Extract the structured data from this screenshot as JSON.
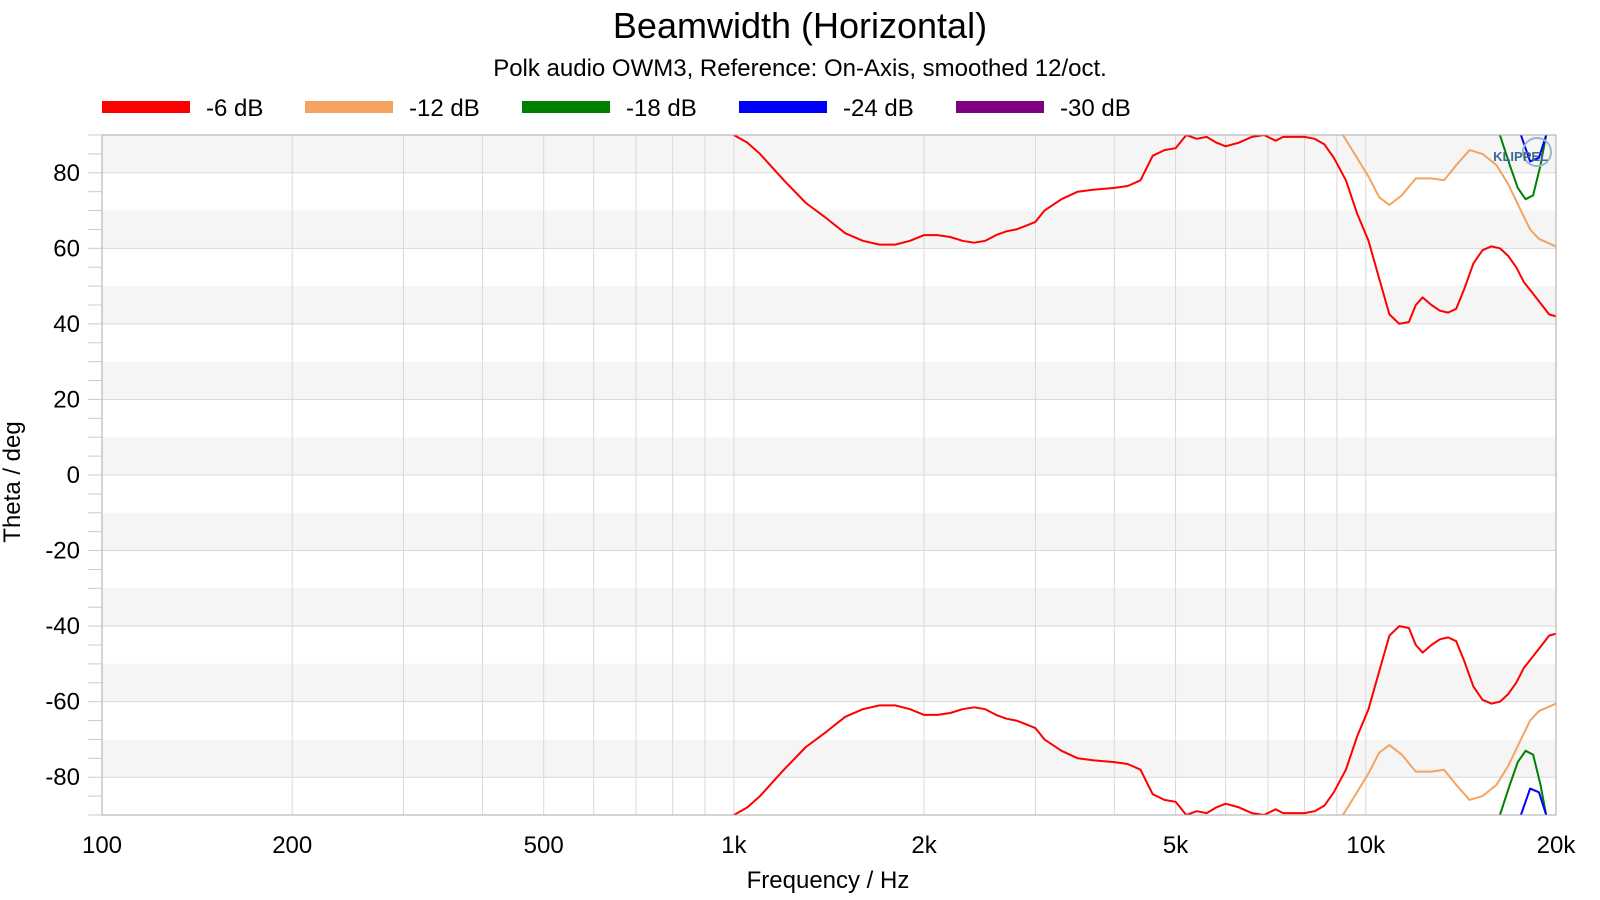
{
  "chart_data": {
    "type": "line",
    "title": "Beamwidth (Horizontal)",
    "subtitle": "Polk audio OWM3, Reference: On-Axis, smoothed 12/oct.",
    "xlabel": "Frequency / Hz",
    "ylabel": "Theta / deg",
    "xscale": "log",
    "xlim": [
      100,
      20000
    ],
    "ylim": [
      -90,
      90
    ],
    "xticks": [
      {
        "value": 100,
        "label": "100"
      },
      {
        "value": 200,
        "label": "200"
      },
      {
        "value": 500,
        "label": "500"
      },
      {
        "value": 1000,
        "label": "1k"
      },
      {
        "value": 2000,
        "label": "2k"
      },
      {
        "value": 5000,
        "label": "5k"
      },
      {
        "value": 10000,
        "label": "10k"
      },
      {
        "value": 20000,
        "label": "20k"
      }
    ],
    "yticks": [
      80,
      60,
      40,
      20,
      0,
      -20,
      -40,
      -60,
      -80
    ],
    "grid": true,
    "legend_position": "top",
    "watermark": "KLIPPEL",
    "series": [
      {
        "name": "-6 dB",
        "color": "#ff0000",
        "symmetric": true,
        "points": [
          [
            1000,
            90
          ],
          [
            1050,
            88
          ],
          [
            1100,
            85
          ],
          [
            1200,
            78
          ],
          [
            1300,
            72
          ],
          [
            1400,
            68
          ],
          [
            1500,
            64
          ],
          [
            1600,
            62
          ],
          [
            1700,
            61
          ],
          [
            1800,
            61
          ],
          [
            1900,
            62
          ],
          [
            2000,
            63.5
          ],
          [
            2100,
            63.5
          ],
          [
            2200,
            63
          ],
          [
            2300,
            62
          ],
          [
            2400,
            61.5
          ],
          [
            2500,
            62
          ],
          [
            2600,
            63.5
          ],
          [
            2700,
            64.5
          ],
          [
            2800,
            65
          ],
          [
            2900,
            66
          ],
          [
            3000,
            67
          ],
          [
            3100,
            70
          ],
          [
            3300,
            73
          ],
          [
            3500,
            75
          ],
          [
            3700,
            75.5
          ],
          [
            4000,
            76
          ],
          [
            4200,
            76.5
          ],
          [
            4400,
            78
          ],
          [
            4600,
            84.5
          ],
          [
            4800,
            86
          ],
          [
            5000,
            86.5
          ],
          [
            5200,
            90
          ],
          [
            5400,
            89
          ],
          [
            5600,
            89.5
          ],
          [
            5800,
            88
          ],
          [
            6000,
            87
          ],
          [
            6300,
            88
          ],
          [
            6600,
            89.5
          ],
          [
            6900,
            90
          ],
          [
            7200,
            88.5
          ],
          [
            7400,
            89.5
          ],
          [
            7700,
            89.5
          ],
          [
            8000,
            89.5
          ],
          [
            8300,
            89
          ],
          [
            8600,
            87.5
          ],
          [
            8900,
            84
          ],
          [
            9300,
            78
          ],
          [
            9700,
            69
          ],
          [
            10100,
            62
          ],
          [
            10500,
            52
          ],
          [
            10900,
            42.5
          ],
          [
            11300,
            40
          ],
          [
            11700,
            40.5
          ],
          [
            12000,
            45
          ],
          [
            12300,
            47
          ],
          [
            12700,
            45
          ],
          [
            13100,
            43.5
          ],
          [
            13500,
            43
          ],
          [
            13900,
            44
          ],
          [
            14300,
            49
          ],
          [
            14800,
            56
          ],
          [
            15300,
            59.5
          ],
          [
            15800,
            60.5
          ],
          [
            16300,
            60
          ],
          [
            16800,
            58
          ],
          [
            17300,
            55
          ],
          [
            17800,
            51
          ],
          [
            18400,
            48
          ],
          [
            19000,
            45
          ],
          [
            19500,
            42.5
          ],
          [
            20000,
            42
          ]
        ]
      },
      {
        "name": "-12 dB",
        "color": "#f4a460",
        "symmetric": true,
        "points": [
          [
            9200,
            90
          ],
          [
            9600,
            85
          ],
          [
            10100,
            79
          ],
          [
            10500,
            73.5
          ],
          [
            10900,
            71.5
          ],
          [
            11400,
            74
          ],
          [
            12000,
            78.5
          ],
          [
            12700,
            78.5
          ],
          [
            13300,
            78
          ],
          [
            13900,
            82
          ],
          [
            14600,
            86
          ],
          [
            15300,
            85
          ],
          [
            16100,
            82
          ],
          [
            16800,
            77
          ],
          [
            17600,
            70
          ],
          [
            18200,
            65
          ],
          [
            18800,
            62.5
          ],
          [
            19400,
            61.5
          ],
          [
            20000,
            60.5
          ]
        ]
      },
      {
        "name": "-18 dB",
        "color": "#008000",
        "symmetric": true,
        "points": [
          [
            16300,
            90
          ],
          [
            16900,
            82
          ],
          [
            17400,
            76
          ],
          [
            17900,
            73
          ],
          [
            18400,
            74
          ],
          [
            18900,
            82
          ],
          [
            19300,
            90
          ]
        ]
      },
      {
        "name": "-24 dB",
        "color": "#0000ff",
        "symmetric": true,
        "points": [
          [
            17600,
            90
          ],
          [
            18200,
            83
          ],
          [
            18800,
            84
          ],
          [
            19300,
            90
          ]
        ]
      },
      {
        "name": "-30 dB",
        "color": "#800080",
        "symmetric": true,
        "points": []
      }
    ]
  }
}
